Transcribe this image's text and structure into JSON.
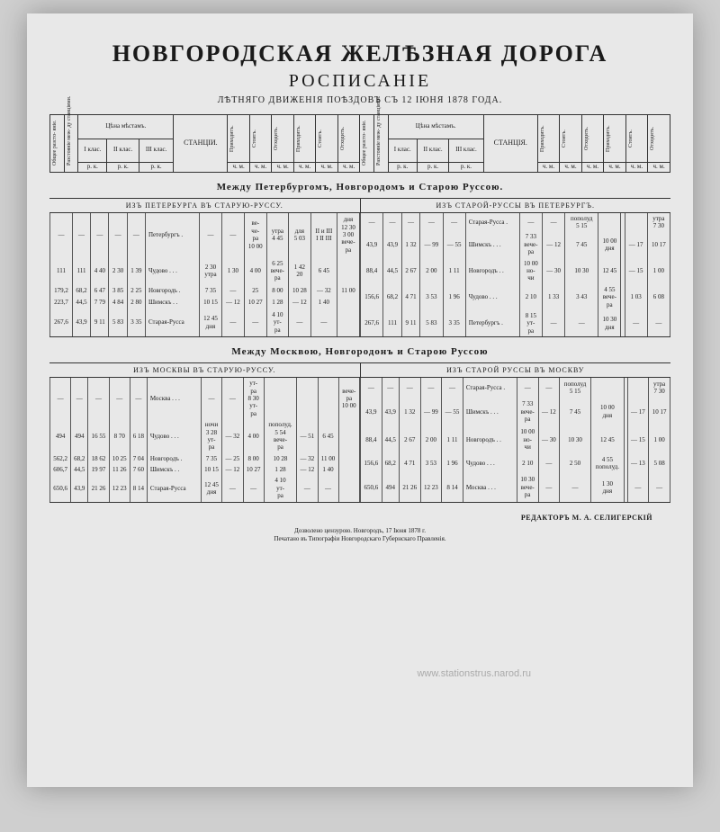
{
  "title": {
    "main": "НОВГОРОДСКАЯ ЖЕЛѢЗНАЯ ДОРОГА",
    "sub": "РОСПИСАНІЕ",
    "caption": "ЛѢТНЯГО ДВИЖЕНІЯ ПОѢЗДОВЪ СЪ 12 ІЮНЯ 1878 ГОДА."
  },
  "header_cols": {
    "dist_total": "Общее разсто-\nяніе.",
    "dist_between": "Разстояніе меж-\nду станціями.",
    "price_header": "Цѣна мѣстамъ.",
    "class1": "I клас.",
    "class2": "II клас.",
    "class3": "III клас.",
    "sub": "р. к.",
    "station": "СТАНЦІИ.",
    "station2": "СТАНЦІЯ.",
    "arrive": "Приходитъ.",
    "stand": "Стоитъ.",
    "depart": "Отходитъ.",
    "hm": "ч. м."
  },
  "section1": {
    "heading": "Между Петербургомъ, Новгородомъ и Старою Руссою.",
    "dir_left": "ИЗЪ ПЕТЕРБУРГА ВЪ СТАРУЮ-РУССУ.",
    "dir_right": "ИЗЪ СТАРОЙ-РУССЫ ВЪ ПЕТЕРБУРГЪ.",
    "left_rows": [
      {
        "d1": "—",
        "d2": "—",
        "c1": "—",
        "c2": "—",
        "c3": "—",
        "st": "Петербургъ .",
        "t": [
          "—",
          "—",
          "ве-\nче-\nра\n10 00",
          "утра\n4 45",
          "для\n5 03",
          "II и III\nI II III",
          "дня\n12 30\n3 00\nвече-\nра"
        ]
      },
      {
        "d1": "111",
        "d2": "111",
        "c1": "4 40",
        "c2": "2 30",
        "c3": "1 39",
        "st": "Чудово . . .",
        "t": [
          "2 30\nутра",
          "1 30",
          "4 00",
          "6 25\nвече-\nра",
          "1 42\n20",
          "6 45",
          ""
        ]
      },
      {
        "d1": "179,2",
        "d2": "68,2",
        "c1": "6 47",
        "c2": "3 85",
        "c3": "2 25",
        "st": "Новгородъ .",
        "t": [
          "7 35",
          "—",
          "25",
          "8 00",
          "10 28",
          "— 32",
          "11 00"
        ]
      },
      {
        "d1": "223,7",
        "d2": "44,5",
        "c1": "7 79",
        "c2": "4 84",
        "c3": "2 80",
        "st": "Шимскъ . .",
        "t": [
          "10 15",
          "— 12",
          "10 27",
          "1 28",
          "— 12",
          "1 40",
          ""
        ]
      },
      {
        "d1": "267,6",
        "d2": "43,9",
        "c1": "9 11",
        "c2": "5 83",
        "c3": "3 35",
        "st": "Старая-Русса",
        "t": [
          "12 45\nдня",
          "—",
          "—",
          "4 10\nут-\nра",
          "—",
          "—",
          ""
        ]
      }
    ],
    "right_rows": [
      {
        "d1": "—",
        "d2": "—",
        "c1": "—",
        "c2": "—",
        "c3": "—",
        "st": "Старая-Русса .",
        "t": [
          "—",
          "—",
          "пополуд\n5 15",
          "",
          "",
          "",
          "утра\n7 30"
        ]
      },
      {
        "d1": "43,9",
        "d2": "43,9",
        "c1": "1 32",
        "c2": "— 99",
        "c3": "— 55",
        "st": "Шимскъ . . .",
        "t": [
          "7 33\nвече-\nра",
          "— 12",
          "7 45",
          "10 00\nдня",
          "",
          "— 17",
          "10 17"
        ]
      },
      {
        "d1": "88,4",
        "d2": "44,5",
        "c1": "2 67",
        "c2": "2 00",
        "c3": "1 11",
        "st": "Новгородъ . .",
        "t": [
          "10 00\nно-\nчи",
          "— 30",
          "10 30",
          "12 45",
          "",
          "— 15",
          "1 00"
        ]
      },
      {
        "d1": "156,6",
        "d2": "68,2",
        "c1": "4 71",
        "c2": "3 53",
        "c3": "1 96",
        "st": "Чудово . . .",
        "t": [
          "2 10",
          "1 33",
          "3 43",
          "4 55\nвече-\nра",
          "",
          "1 03",
          "6 08"
        ]
      },
      {
        "d1": "267,6",
        "d2": "111",
        "c1": "9 11",
        "c2": "5 83",
        "c3": "3 35",
        "st": "Петербургъ .",
        "t": [
          "8 15\nут-\nра",
          "—",
          "—",
          "10 30\nдня",
          "",
          "—",
          "—"
        ]
      }
    ]
  },
  "section2": {
    "heading": "Между Москвою, Новгородонъ и Старою Руссою",
    "dir_left": "ИЗЪ МОСКВЫ ВЪ СТАРУЮ-РУССУ.",
    "dir_right": "ИЗЪ СТАРОЙ РУССЫ ВЪ МОСКВУ",
    "left_rows": [
      {
        "d1": "—",
        "d2": "—",
        "c1": "—",
        "c2": "—",
        "c3": "—",
        "st": "Москва . . .",
        "t": [
          "—",
          "—",
          "ут-\nра\n8 30\nут-\nра",
          "",
          "",
          "",
          "вече-\nра\n10 00"
        ]
      },
      {
        "d1": "494",
        "d2": "494",
        "c1": "16 55",
        "c2": "8 70",
        "c3": "6 18",
        "st": "Чудово . . .",
        "t": [
          "ночи\n3 28\nут-\nра",
          "— 32",
          "4 00",
          "пополуд.\n5 54\nвече-\nра",
          "— 51",
          "6 45",
          ""
        ]
      },
      {
        "d1": "562,2",
        "d2": "68,2",
        "c1": "18 62",
        "c2": "10 25",
        "c3": "7 04",
        "st": "Новгородъ .",
        "t": [
          "7 35",
          "— 25",
          "8 00",
          "10 28",
          "— 32",
          "11 00",
          ""
        ]
      },
      {
        "d1": "606,7",
        "d2": "44,5",
        "c1": "19 97",
        "c2": "11 26",
        "c3": "7 60",
        "st": "Шимскъ . .",
        "t": [
          "10 15",
          "— 12",
          "10 27",
          "1 28",
          "— 12",
          "1 40",
          ""
        ]
      },
      {
        "d1": "650,6",
        "d2": "43,9",
        "c1": "21 26",
        "c2": "12 23",
        "c3": "8 14",
        "st": "Старая-Русса",
        "t": [
          "12 45\nдня",
          "—",
          "—",
          "4 10\nут-\nра",
          "—",
          "—",
          ""
        ]
      }
    ],
    "right_rows": [
      {
        "d1": "—",
        "d2": "—",
        "c1": "—",
        "c2": "—",
        "c3": "—",
        "st": "Старая-Русса .",
        "t": [
          "—",
          "—",
          "пополуд\n5 15",
          "",
          "",
          "",
          "утра\n7 30"
        ]
      },
      {
        "d1": "43,9",
        "d2": "43,9",
        "c1": "1 32",
        "c2": "— 99",
        "c3": "— 55",
        "st": "Шимскъ . . .",
        "t": [
          "7 33\nвече-\nра",
          "— 12",
          "7 45",
          "10 00\nдня",
          "",
          "— 17",
          "10 17"
        ]
      },
      {
        "d1": "88,4",
        "d2": "44,5",
        "c1": "2 67",
        "c2": "2 00",
        "c3": "1 11",
        "st": "Новгородъ . .",
        "t": [
          "10 00\nно-\nчи",
          "— 30",
          "10 30",
          "12 45",
          "",
          "— 15",
          "1 00"
        ]
      },
      {
        "d1": "156,6",
        "d2": "68,2",
        "c1": "4 71",
        "c2": "3 53",
        "c3": "1 96",
        "st": "Чудово . . .",
        "t": [
          "2 10",
          "—",
          "2 50",
          "4 55\nпополуд.",
          "",
          "— 13",
          "5 08"
        ]
      },
      {
        "d1": "650,6",
        "d2": "494",
        "c1": "21 26",
        "c2": "12 23",
        "c3": "8 14",
        "st": "Москва . . .",
        "t": [
          "10 30\nвече-\nра",
          "—",
          "—",
          "1 30\nдня",
          "",
          "—",
          "—"
        ]
      }
    ]
  },
  "editor": "РЕДАКТОРЪ М. А. СЕЛИГЕРСКІЙ",
  "footer": {
    "l1": "Дозволено цензурою. Новгородъ, 17 Іюня 1878 г.",
    "l2": "Печатано въ Типографіи Новгородскаго Губернскаго Правленія."
  },
  "watermark": "www.stationstrus.narod.ru",
  "colors": {
    "page_bg": "#e8e8e8",
    "body_bg": "#cfcfcf",
    "ink": "#1a1a1a",
    "border": "#333"
  }
}
